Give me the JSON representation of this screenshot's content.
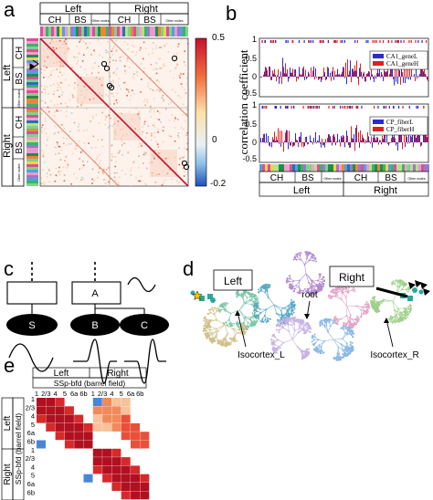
{
  "panels": {
    "a": {
      "label": "a",
      "hemispheres": [
        "Left",
        "Right"
      ],
      "groups_top": [
        "CH",
        "BS",
        "Other nodes",
        "CH",
        "BS",
        "Other nodes"
      ],
      "groups_side": [
        "CH",
        "BS",
        "Other nodes",
        "CH",
        "BS",
        "Other nodes"
      ],
      "colorbar_ticks": [
        "0.5",
        "0",
        "-0.2"
      ]
    },
    "b": {
      "label": "b",
      "ylabel": "correlation coefficient",
      "yticks_upper": [
        "1",
        "0.5",
        "0",
        "-0.5"
      ],
      "yticks_lower": [
        "1",
        "0.5",
        "0",
        "-0.5"
      ],
      "legend_upper": [
        "CA1_geneL",
        "CA1_geneH"
      ],
      "legend_lower": [
        "CP_fiberL",
        "CP_fiberH"
      ],
      "groups": [
        "CH",
        "BS",
        "Other nodes",
        "CH",
        "BS",
        "Other nodes"
      ],
      "hemispheres": [
        "Left",
        "Right"
      ]
    },
    "c": {
      "label": "c",
      "node_a": "A",
      "node_s": "S",
      "node_b": "B",
      "node_c": "C"
    },
    "d": {
      "label": "d",
      "left": "Left",
      "right": "Right",
      "root": "root",
      "isocortex_l": "Isocortex_L",
      "isocortex_r": "Isocortex_R"
    },
    "e": {
      "label": "e",
      "left": "Left",
      "right": "Right",
      "region": "SSp-bfd (barrel field)",
      "layers": [
        "1",
        "2/3",
        "4",
        "5",
        "6a",
        "6b"
      ]
    }
  },
  "colors": {
    "blue": "#2a2ad0",
    "red": "#e02020",
    "dark_red": "#b01020",
    "teal": "#2aa89a"
  }
}
